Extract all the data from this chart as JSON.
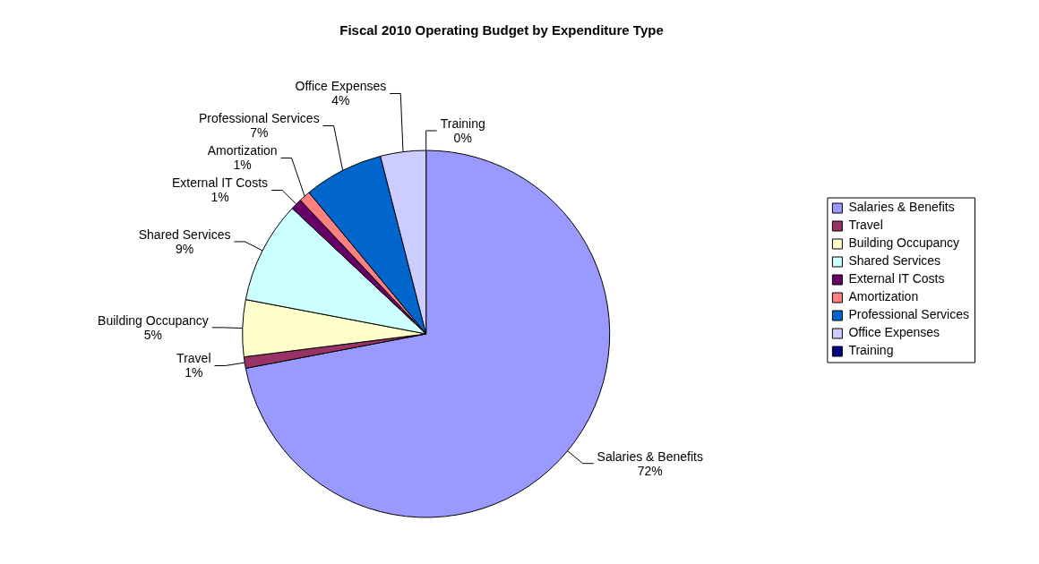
{
  "chart_data": {
    "type": "pie",
    "title": "Fiscal 2010 Operating Budget by Expenditure Type",
    "categories": [
      "Salaries & Benefits",
      "Travel",
      "Building Occupancy",
      "Shared Services",
      "External IT Costs",
      "Amortization",
      "Professional Services",
      "Office Expenses",
      "Training"
    ],
    "values": [
      72,
      1,
      5,
      9,
      1,
      1,
      7,
      4,
      0
    ],
    "colors": [
      "#9999ff",
      "#993366",
      "#ffffcc",
      "#ccffff",
      "#660066",
      "#ff8080",
      "#0066cc",
      "#ccccff",
      "#000080"
    ],
    "value_labels": [
      "72%",
      "1%",
      "5%",
      "9%",
      "1%",
      "1%",
      "7%",
      "4%",
      "0%"
    ],
    "legend": "right"
  }
}
